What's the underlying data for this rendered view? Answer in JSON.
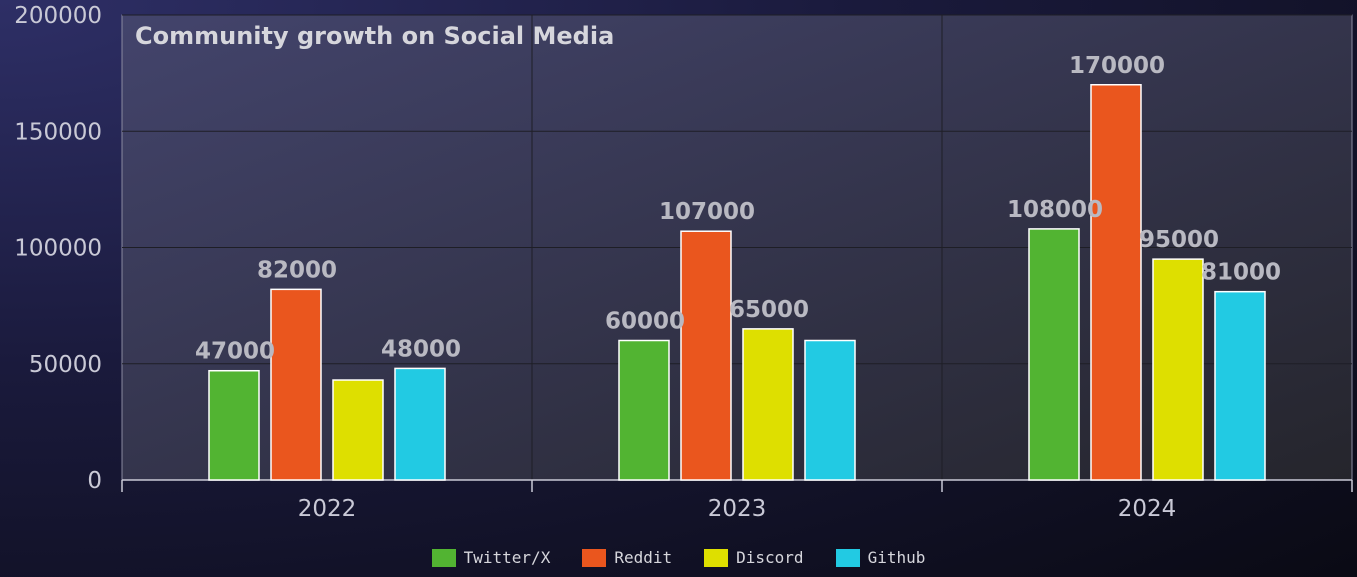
{
  "chart_data": {
    "type": "bar",
    "title": "Community growth on Social Media",
    "categories": [
      "2022",
      "2023",
      "2024"
    ],
    "series": [
      {
        "name": "Twitter/X",
        "color": "#52b432",
        "values": [
          47000,
          60000,
          108000
        ],
        "labels": [
          "47000",
          "60000",
          "108000"
        ]
      },
      {
        "name": "Reddit",
        "color": "#ea561e",
        "values": [
          82000,
          107000,
          170000
        ],
        "labels": [
          "82000",
          "107000",
          "170000"
        ]
      },
      {
        "name": "Discord",
        "color": "#dedf00",
        "values": [
          43000,
          65000,
          95000
        ],
        "labels": [
          "",
          "65000",
          "95000"
        ]
      },
      {
        "name": "Github",
        "color": "#22cae3",
        "values": [
          48000,
          60000,
          81000
        ],
        "labels": [
          "48000",
          "",
          "81000"
        ]
      }
    ],
    "yticks": [
      "0",
      "50000",
      "100000",
      "150000",
      "200000"
    ],
    "ylim": [
      0,
      200000
    ],
    "grid": true,
    "legend": "bottom-center"
  }
}
